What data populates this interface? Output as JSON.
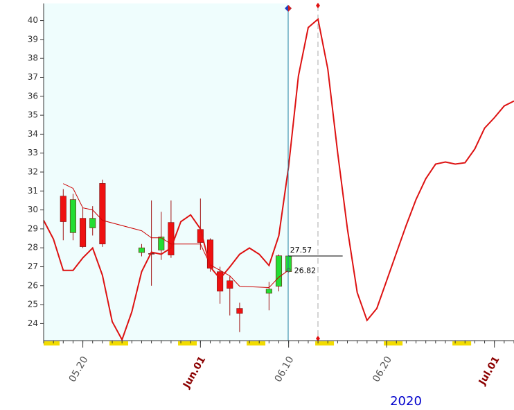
{
  "chart_data": {
    "type": "candlestick",
    "ylim": [
      23.1,
      40.9
    ],
    "yticks": [
      24,
      25,
      26,
      27,
      28,
      29,
      30,
      31,
      32,
      33,
      34,
      35,
      36,
      37,
      38,
      39,
      40
    ],
    "xlim": [
      "2020-05-16",
      "2020-07-03"
    ],
    "xticks": [
      {
        "value": "2020-05-20",
        "label": "05.20",
        "color": "#555555"
      },
      {
        "value": "2020-06-01",
        "label": "Jun.01",
        "color": "#8b0000"
      },
      {
        "value": "2020-06-10",
        "label": "06.10",
        "color": "#555555"
      },
      {
        "value": "2020-06-20",
        "label": "06.20",
        "color": "#555555"
      },
      {
        "value": "2020-07-01",
        "label": "Jul.01",
        "color": "#8b0000"
      }
    ],
    "x_label": "2020",
    "x_label_color": "#0000cc",
    "candles": {
      "x": [
        "2020-05-18",
        "2020-05-19",
        "2020-05-20",
        "2020-05-21",
        "2020-05-22",
        "2020-05-26",
        "2020-05-27",
        "2020-05-28",
        "2020-05-29",
        "2020-06-01",
        "2020-06-02",
        "2020-06-03",
        "2020-06-04",
        "2020-06-05",
        "2020-06-08",
        "2020-06-09",
        "2020-06-10"
      ],
      "open": [
        30.73,
        28.8,
        29.56,
        29.05,
        31.4,
        27.75,
        27.7,
        27.88,
        29.34,
        28.97,
        28.42,
        26.74,
        26.26,
        24.8,
        25.6,
        25.97,
        26.74
      ],
      "high": [
        31.1,
        30.85,
        30.1,
        30.2,
        31.6,
        28.2,
        30.5,
        29.9,
        30.5,
        30.6,
        28.5,
        27.0,
        26.5,
        25.1,
        26.2,
        27.65,
        27.6
      ],
      "low": [
        28.4,
        28.4,
        27.99,
        28.65,
        28.05,
        27.55,
        26.0,
        27.36,
        27.47,
        27.9,
        26.74,
        25.05,
        24.43,
        23.55,
        24.7,
        25.7,
        26.7
      ],
      "close": [
        29.38,
        30.55,
        28.06,
        29.56,
        28.2,
        28.0,
        27.7,
        28.57,
        27.62,
        28.28,
        26.92,
        25.71,
        25.86,
        24.54,
        25.82,
        27.58,
        27.57
      ],
      "up_color": "#22dd33",
      "down_color": "#ee1111"
    },
    "lines": [
      {
        "color": "#cc0000",
        "width": 1,
        "x": [
          "2020-05-18",
          "2020-05-19",
          "2020-05-20",
          "2020-05-21",
          "2020-05-22",
          "2020-05-26",
          "2020-05-27",
          "2020-05-28",
          "2020-05-29",
          "2020-06-01",
          "2020-06-02",
          "2020-06-03",
          "2020-06-04",
          "2020-06-05",
          "2020-06-08",
          "2020-06-09",
          "2020-06-10"
        ],
        "values": [
          31.39,
          31.14,
          30.11,
          30.0,
          29.45,
          28.9,
          28.53,
          28.53,
          28.2,
          28.2,
          27.1,
          26.81,
          26.52,
          25.97,
          25.9,
          26.45,
          26.82
        ]
      },
      {
        "color": "#dd1111",
        "width": 2,
        "x": [
          "2020-05-16",
          "2020-05-17",
          "2020-05-18",
          "2020-05-19",
          "2020-05-20",
          "2020-05-21",
          "2020-05-22",
          "2020-05-23",
          "2020-05-24",
          "2020-05-25",
          "2020-05-26",
          "2020-05-27",
          "2020-05-28",
          "2020-05-29",
          "2020-05-30",
          "2020-05-31",
          "2020-06-01",
          "2020-06-02",
          "2020-06-03",
          "2020-06-04",
          "2020-06-05",
          "2020-06-06",
          "2020-06-07",
          "2020-06-08",
          "2020-06-09",
          "2020-06-10",
          "2020-06-11",
          "2020-06-12",
          "2020-06-13",
          "2020-06-14",
          "2020-06-15",
          "2020-06-16",
          "2020-06-17",
          "2020-06-18",
          "2020-06-19",
          "2020-06-20",
          "2020-06-21",
          "2020-06-22",
          "2020-06-23",
          "2020-06-24",
          "2020-06-25",
          "2020-06-26",
          "2020-06-27",
          "2020-06-28",
          "2020-06-29",
          "2020-06-30",
          "2020-07-01",
          "2020-07-02",
          "2020-07-03"
        ],
        "values": [
          29.45,
          28.46,
          26.81,
          26.81,
          27.47,
          27.99,
          26.55,
          24.1,
          23.15,
          24.62,
          26.74,
          27.77,
          27.66,
          27.99,
          29.38,
          29.74,
          29.0,
          26.99,
          26.37,
          26.99,
          27.66,
          27.99,
          27.66,
          27.07,
          28.64,
          32.3,
          37.07,
          39.63,
          40.07,
          37.44,
          33.04,
          29.0,
          25.64,
          24.17,
          24.8,
          26.26,
          27.73,
          29.19,
          30.55,
          31.65,
          32.42,
          32.53,
          32.42,
          32.49,
          33.22,
          34.32,
          34.87,
          35.49,
          35.75
        ]
      }
    ],
    "annotations": [
      {
        "x": "2020-06-10",
        "y": 27.57
      },
      {
        "x": "2020-06-10",
        "y": 26.82
      }
    ]
  }
}
